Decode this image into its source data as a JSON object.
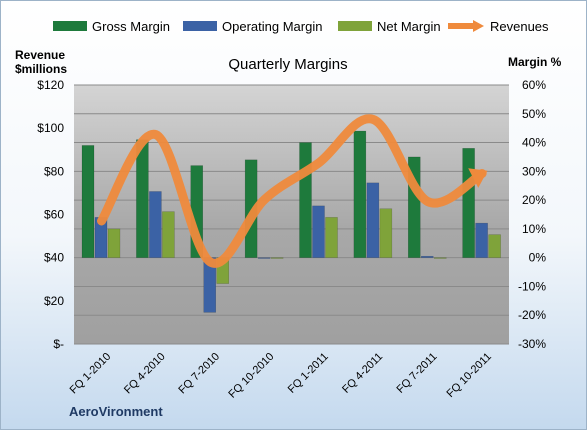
{
  "chart_data": {
    "type": "bar+line",
    "title": "Quarterly Margins",
    "left_axis_title": [
      "Revenue",
      "$millions"
    ],
    "right_axis_title": "Margin %",
    "footer": "AeroVironment",
    "categories": [
      "FQ 1-2010",
      "FQ 4-2010",
      "FQ 7-2010",
      "FQ 10-2010",
      "FQ 1-2011",
      "FQ 4-2011",
      "FQ 7-2011",
      "FQ 10-2011"
    ],
    "left_ticks": [
      "$120",
      "$100",
      "$80",
      "$60",
      "$40",
      "$20",
      "$-"
    ],
    "right_ticks": [
      "60%",
      "50%",
      "40%",
      "30%",
      "20%",
      "10%",
      "0%",
      "-10%",
      "-20%",
      "-30%"
    ],
    "left_range": [
      0,
      120
    ],
    "right_range": [
      -30,
      60
    ],
    "grid": true,
    "legend_position": "top",
    "series": [
      {
        "name": "Gross Margin",
        "type": "bar",
        "axis": "right",
        "color": "#1e7a3c",
        "values": [
          39,
          41,
          32,
          34,
          40,
          44,
          35,
          38
        ]
      },
      {
        "name": "Operating Margin",
        "type": "bar",
        "axis": "right",
        "color": "#3b62a5",
        "values": [
          14,
          23,
          -19,
          0,
          18,
          26,
          0.5,
          12
        ]
      },
      {
        "name": "Net Margin",
        "type": "bar",
        "axis": "right",
        "color": "#7fa33a",
        "values": [
          10,
          16,
          -9,
          0,
          14,
          17,
          0,
          8
        ]
      },
      {
        "name": "Revenues",
        "type": "line",
        "axis": "left",
        "color": "#ef8a3c",
        "values": [
          57,
          97,
          38,
          67,
          84,
          104,
          66,
          79
        ]
      }
    ]
  }
}
